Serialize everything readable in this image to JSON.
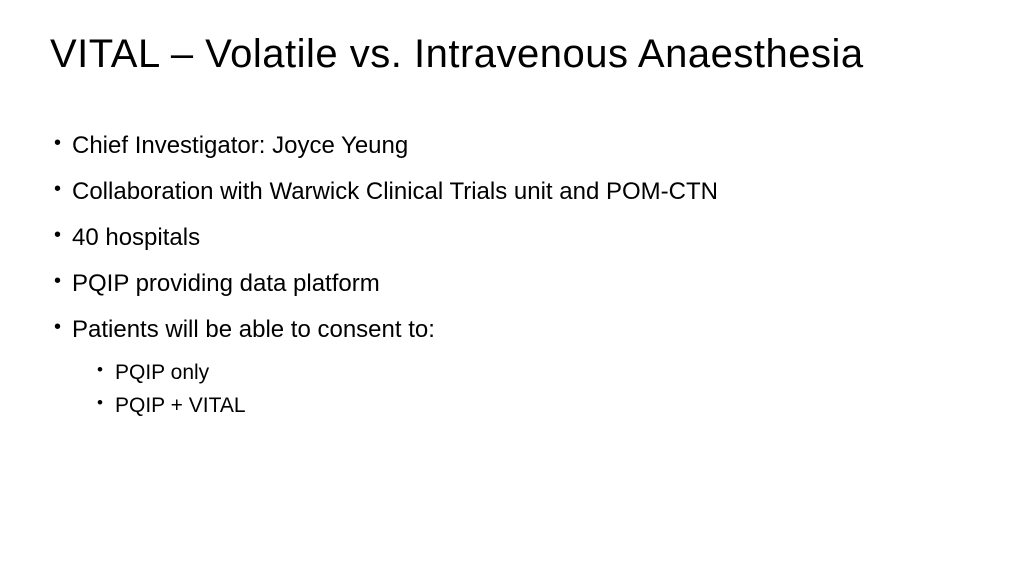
{
  "slide": {
    "title": "VITAL – Volatile vs. Intravenous Anaesthesia",
    "bullets": [
      {
        "text": "Chief Investigator: Joyce Yeung"
      },
      {
        "text": "Collaboration with Warwick Clinical Trials unit and POM-CTN"
      },
      {
        "text": "40 hospitals"
      },
      {
        "text": "PQIP providing data platform"
      },
      {
        "text": "Patients will be able to consent to:"
      }
    ],
    "sub_bullets": [
      {
        "text": "PQIP only"
      },
      {
        "text": "PQIP + VITAL"
      }
    ]
  },
  "style": {
    "background_color": "#ffffff",
    "text_color": "#000000",
    "title_fontsize": 40,
    "bullet_fontsize": 24,
    "sub_bullet_fontsize": 21,
    "font_family": "Century Gothic"
  }
}
